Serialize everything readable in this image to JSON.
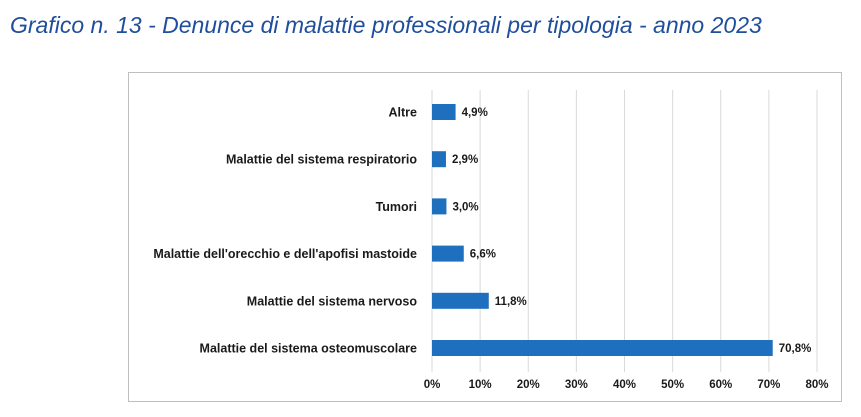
{
  "page": {
    "title": "Grafico n. 13 - Denunce di malattie professionali per tipologia - anno 2023"
  },
  "chart_data": {
    "type": "bar",
    "orientation": "horizontal",
    "categories": [
      "Altre",
      "Malattie del sistema respiratorio",
      "Tumori",
      "Malattie dell'orecchio e dell'apofisi mastoide",
      "Malattie del sistema nervoso",
      "Malattie del sistema osteomuscolare"
    ],
    "values": [
      4.9,
      2.9,
      3.0,
      6.6,
      11.8,
      70.8
    ],
    "value_labels": [
      "4,9%",
      "2,9%",
      "3,0%",
      "6,6%",
      "11,8%",
      "70,8%"
    ],
    "xlim": [
      0,
      80
    ],
    "xticks": [
      0,
      10,
      20,
      30,
      40,
      50,
      60,
      70,
      80
    ],
    "xtick_labels": [
      "0%",
      "10%",
      "20%",
      "30%",
      "40%",
      "50%",
      "60%",
      "70%",
      "80%"
    ],
    "grid": "vertical",
    "bar_color": "#1f6fbf",
    "grid_color": "#d9d9d9",
    "title_color": "#1f4e9c"
  }
}
